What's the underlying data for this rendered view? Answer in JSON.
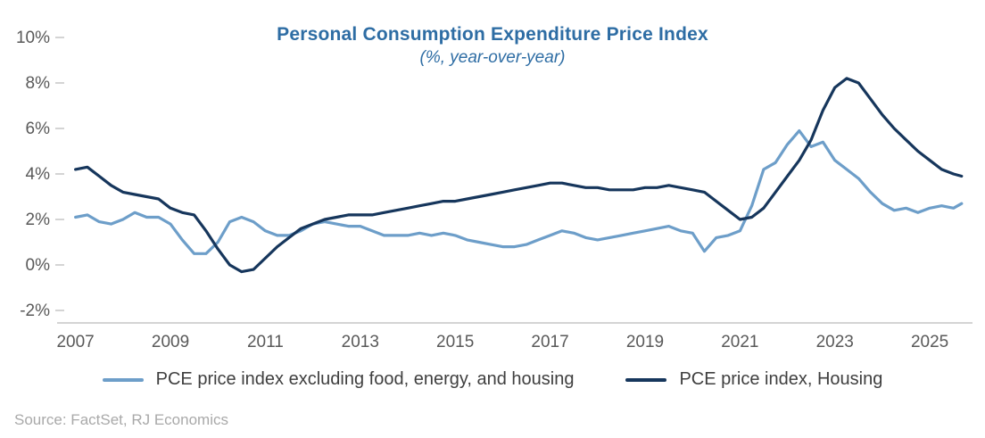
{
  "title": "Personal Consumption Expenditure Price Index",
  "subtitle": "(%, year-over-year)",
  "source": "Source: FactSet, RJ Economics",
  "colors": {
    "core": "#6D9EC9",
    "housing": "#16365C",
    "title": "#2E6DA4",
    "axis_text": "#595959",
    "axis_line": "#C6C6C6",
    "legend_text": "#3F3F3F",
    "source_text": "#A9A9A9"
  },
  "legend": {
    "items": [
      {
        "label": "PCE price index excluding food, energy, and housing",
        "color_key": "core"
      },
      {
        "label": "PCE price index, Housing",
        "color_key": "housing"
      }
    ]
  },
  "chart_data": {
    "type": "line",
    "title": "Personal Consumption Expenditure Price Index",
    "subtitle": "(%, year-over-year)",
    "xlabel": "",
    "ylabel": "",
    "grid": false,
    "legend_position": "bottom",
    "xlim": [
      2006.8,
      2025.9
    ],
    "ylim": [
      -2,
      10
    ],
    "x_ticks": [
      2007,
      2009,
      2011,
      2013,
      2015,
      2017,
      2019,
      2021,
      2023,
      2025
    ],
    "y_ticks": [
      -2,
      0,
      2,
      4,
      6,
      8,
      10
    ],
    "y_tick_suffix": "%",
    "x": [
      2007,
      2007.25,
      2007.5,
      2007.75,
      2008,
      2008.25,
      2008.5,
      2008.75,
      2009,
      2009.25,
      2009.5,
      2009.75,
      2010,
      2010.25,
      2010.5,
      2010.75,
      2011,
      2011.25,
      2011.5,
      2011.75,
      2012,
      2012.25,
      2012.5,
      2012.75,
      2013,
      2013.25,
      2013.5,
      2013.75,
      2014,
      2014.25,
      2014.5,
      2014.75,
      2015,
      2015.25,
      2015.5,
      2015.75,
      2016,
      2016.25,
      2016.5,
      2016.75,
      2017,
      2017.25,
      2017.5,
      2017.75,
      2018,
      2018.25,
      2018.5,
      2018.75,
      2019,
      2019.25,
      2019.5,
      2019.75,
      2020,
      2020.25,
      2020.5,
      2020.75,
      2021,
      2021.25,
      2021.5,
      2021.75,
      2022,
      2022.25,
      2022.5,
      2022.75,
      2023,
      2023.25,
      2023.5,
      2023.75,
      2024,
      2024.25,
      2024.5,
      2024.75,
      2025,
      2025.25,
      2025.5,
      2025.67
    ],
    "series": [
      {
        "name": "PCE price index excluding food, energy, and housing",
        "color_key": "core",
        "values": [
          2.1,
          2.2,
          1.9,
          1.8,
          2.0,
          2.3,
          2.1,
          2.1,
          1.8,
          1.1,
          0.5,
          0.5,
          1.0,
          1.9,
          2.1,
          1.9,
          1.5,
          1.3,
          1.3,
          1.5,
          1.8,
          1.9,
          1.8,
          1.7,
          1.7,
          1.5,
          1.3,
          1.3,
          1.3,
          1.4,
          1.3,
          1.4,
          1.3,
          1.1,
          1.0,
          0.9,
          0.8,
          0.8,
          0.9,
          1.1,
          1.3,
          1.5,
          1.4,
          1.2,
          1.1,
          1.2,
          1.3,
          1.4,
          1.5,
          1.6,
          1.7,
          1.5,
          1.4,
          0.6,
          1.2,
          1.3,
          1.5,
          2.6,
          4.2,
          4.5,
          5.3,
          5.9,
          5.2,
          5.4,
          4.6,
          4.2,
          3.8,
          3.2,
          2.7,
          2.4,
          2.5,
          2.3,
          2.5,
          2.6,
          2.5,
          2.7
        ]
      },
      {
        "name": "PCE price index, Housing",
        "color_key": "housing",
        "values": [
          4.2,
          4.3,
          3.9,
          3.5,
          3.2,
          3.1,
          3.0,
          2.9,
          2.5,
          2.3,
          2.2,
          1.5,
          0.7,
          0.0,
          -0.3,
          -0.2,
          0.3,
          0.8,
          1.2,
          1.6,
          1.8,
          2.0,
          2.1,
          2.2,
          2.2,
          2.2,
          2.3,
          2.4,
          2.5,
          2.6,
          2.7,
          2.8,
          2.8,
          2.9,
          3.0,
          3.1,
          3.2,
          3.3,
          3.4,
          3.5,
          3.6,
          3.6,
          3.5,
          3.4,
          3.4,
          3.3,
          3.3,
          3.3,
          3.4,
          3.4,
          3.5,
          3.4,
          3.3,
          3.2,
          2.8,
          2.4,
          2.0,
          2.1,
          2.5,
          3.2,
          3.9,
          4.6,
          5.5,
          6.8,
          7.8,
          8.2,
          8.0,
          7.3,
          6.6,
          6.0,
          5.5,
          5.0,
          4.6,
          4.2,
          4.0,
          3.9
        ]
      }
    ]
  }
}
